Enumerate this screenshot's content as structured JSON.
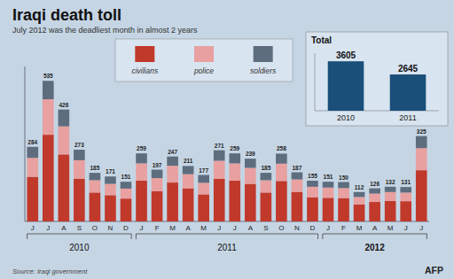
{
  "chart_data": [
    {
      "type": "bar",
      "title": "Iraqi death toll",
      "subtitle": "July 2012 was the deadliest month in almost 2 years",
      "source": "Source: Iraqi government",
      "credit": "AFP",
      "categories": [
        "J",
        "J",
        "A",
        "S",
        "O",
        "N",
        "D",
        "J",
        "F",
        "M",
        "A",
        "M",
        "J",
        "J",
        "A",
        "S",
        "O",
        "N",
        "D",
        "J",
        "F",
        "M",
        "A",
        "M",
        "J",
        "J"
      ],
      "groups": [
        {
          "label": "2010",
          "first": 0,
          "last": 6
        },
        {
          "label": "2011",
          "first": 7,
          "last": 18
        },
        {
          "label": "2012",
          "first": 19,
          "last": 25
        }
      ],
      "series": [
        {
          "name": "civilians",
          "color": "#c0392b",
          "values": [
            170,
            330,
            255,
            163,
            110,
            100,
            87,
            155,
            115,
            148,
            126,
            103,
            162,
            155,
            143,
            110,
            154,
            112,
            92,
            90,
            89,
            65,
            74,
            78,
            77,
            195
          ]
        },
        {
          "name": "police",
          "color": "#e8a0a0",
          "values": [
            72,
            135,
            107,
            70,
            47,
            43,
            38,
            66,
            50,
            64,
            54,
            44,
            69,
            66,
            61,
            47,
            66,
            48,
            40,
            39,
            38,
            28,
            32,
            34,
            33,
            84
          ]
        },
        {
          "name": "soldiers",
          "color": "#5d6d7e",
          "values": [
            42,
            70,
            64,
            40,
            28,
            28,
            26,
            38,
            32,
            35,
            31,
            30,
            40,
            38,
            35,
            28,
            38,
            27,
            23,
            22,
            23,
            19,
            20,
            20,
            21,
            46
          ]
        }
      ],
      "totals": [
        284,
        535,
        426,
        273,
        185,
        171,
        151,
        259,
        197,
        247,
        211,
        177,
        271,
        259,
        239,
        185,
        258,
        187,
        155,
        151,
        150,
        112,
        126,
        132,
        131,
        325
      ],
      "stacked": true,
      "legend": "top",
      "ylim": [
        0,
        590
      ],
      "tick_labels": "x"
    },
    {
      "type": "bar",
      "title": "Total",
      "categories": [
        "2010",
        "2011"
      ],
      "values": [
        3605,
        2645
      ],
      "color": "#1a4f7a",
      "ylim": [
        0,
        4200
      ],
      "data_labels": true,
      "tick_labels": "x"
    }
  ]
}
